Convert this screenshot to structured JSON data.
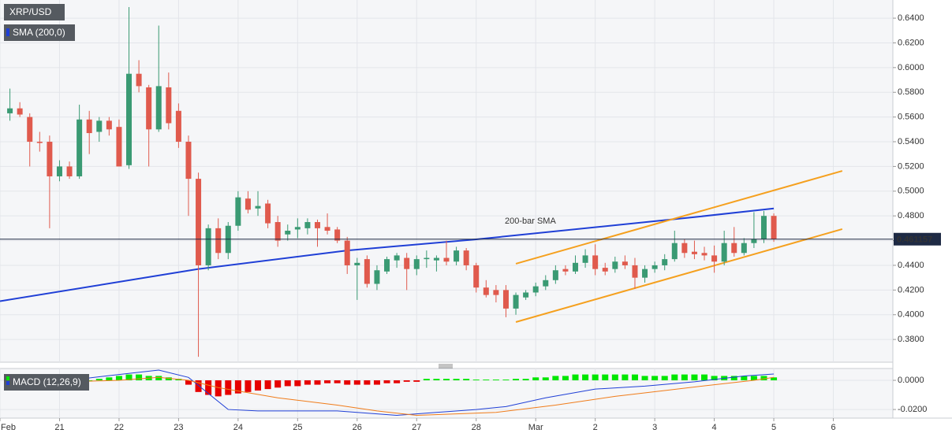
{
  "chart_data": [
    {
      "type": "candlestick",
      "title": "XRP/USD",
      "x": [
        1,
        2,
        3,
        4,
        5,
        6,
        7,
        8,
        9,
        10,
        11,
        12,
        13,
        14,
        15,
        16,
        17,
        18,
        19,
        20,
        21,
        22,
        23,
        24,
        25,
        26,
        27,
        28,
        29,
        30,
        31,
        32,
        33,
        34,
        35,
        36,
        37,
        38,
        39,
        40,
        41,
        42,
        43,
        44,
        45,
        46,
        47,
        48,
        49,
        50,
        51,
        52,
        53,
        54,
        55,
        56,
        57,
        58,
        59,
        60,
        61,
        62,
        63,
        64,
        65,
        66,
        67,
        68,
        69,
        70,
        71,
        72,
        73,
        74,
        75,
        76,
        77,
        78
      ],
      "open": [
        0.563,
        0.567,
        0.56,
        0.54,
        0.54,
        0.512,
        0.52,
        0.512,
        0.558,
        0.548,
        0.557,
        0.552,
        0.521,
        0.595,
        0.584,
        0.55,
        0.584,
        0.565,
        0.54,
        0.51,
        0.44,
        0.47,
        0.45,
        0.472,
        0.494,
        0.486,
        0.49,
        0.475,
        0.465,
        0.469,
        0.47,
        0.475,
        0.471,
        0.469,
        0.46,
        0.44,
        0.445,
        0.425,
        0.435,
        0.444,
        0.446,
        0.437,
        0.445,
        0.444,
        0.446,
        0.443,
        0.452,
        0.44,
        0.422,
        0.42,
        0.42,
        0.405,
        0.414,
        0.418,
        0.423,
        0.428,
        0.437,
        0.435,
        0.442,
        0.448,
        0.438,
        0.437,
        0.443,
        0.44,
        0.43,
        0.437,
        0.44,
        0.445,
        0.458,
        0.451,
        0.45,
        0.448,
        0.443,
        0.458,
        0.45,
        0.458,
        0.461,
        0.48
      ],
      "high": [
        0.583,
        0.572,
        0.563,
        0.548,
        0.545,
        0.525,
        0.524,
        0.57,
        0.565,
        0.56,
        0.56,
        0.558,
        0.649,
        0.606,
        0.586,
        0.634,
        0.596,
        0.571,
        0.545,
        0.515,
        0.473,
        0.478,
        0.475,
        0.5,
        0.5,
        0.5,
        0.493,
        0.48,
        0.473,
        0.478,
        0.478,
        0.477,
        0.482,
        0.471,
        0.463,
        0.446,
        0.448,
        0.44,
        0.447,
        0.45,
        0.45,
        0.448,
        0.452,
        0.448,
        0.46,
        0.455,
        0.454,
        0.442,
        0.428,
        0.424,
        0.424,
        0.418,
        0.42,
        0.426,
        0.432,
        0.44,
        0.44,
        0.448,
        0.453,
        0.457,
        0.442,
        0.447,
        0.448,
        0.446,
        0.44,
        0.443,
        0.449,
        0.468,
        0.461,
        0.46,
        0.455,
        0.456,
        0.468,
        0.471,
        0.462,
        0.483,
        0.484,
        0.482
      ],
      "low": [
        0.557,
        0.56,
        0.52,
        0.532,
        0.47,
        0.508,
        0.51,
        0.51,
        0.53,
        0.54,
        0.545,
        0.52,
        0.518,
        0.58,
        0.52,
        0.548,
        0.55,
        0.535,
        0.48,
        0.366,
        0.436,
        0.445,
        0.445,
        0.468,
        0.482,
        0.48,
        0.47,
        0.455,
        0.46,
        0.462,
        0.465,
        0.455,
        0.465,
        0.458,
        0.433,
        0.412,
        0.422,
        0.42,
        0.433,
        0.438,
        0.42,
        0.432,
        0.438,
        0.435,
        0.44,
        0.44,
        0.436,
        0.418,
        0.414,
        0.41,
        0.398,
        0.4,
        0.412,
        0.415,
        0.42,
        0.425,
        0.432,
        0.433,
        0.438,
        0.432,
        0.432,
        0.434,
        0.437,
        0.421,
        0.426,
        0.434,
        0.436,
        0.443,
        0.446,
        0.445,
        0.444,
        0.434,
        0.44,
        0.447,
        0.448,
        0.454,
        0.458,
        0.459
      ],
      "close": [
        0.567,
        0.562,
        0.54,
        0.539,
        0.512,
        0.52,
        0.512,
        0.558,
        0.547,
        0.557,
        0.55,
        0.52,
        0.595,
        0.585,
        0.55,
        0.585,
        0.555,
        0.54,
        0.51,
        0.44,
        0.47,
        0.45,
        0.472,
        0.495,
        0.485,
        0.488,
        0.474,
        0.46,
        0.468,
        0.471,
        0.475,
        0.47,
        0.468,
        0.46,
        0.44,
        0.442,
        0.425,
        0.436,
        0.445,
        0.448,
        0.437,
        0.445,
        0.446,
        0.446,
        0.443,
        0.452,
        0.44,
        0.422,
        0.416,
        0.416,
        0.405,
        0.416,
        0.418,
        0.423,
        0.428,
        0.436,
        0.435,
        0.442,
        0.448,
        0.437,
        0.435,
        0.443,
        0.44,
        0.43,
        0.437,
        0.44,
        0.445,
        0.458,
        0.45,
        0.449,
        0.448,
        0.443,
        0.458,
        0.45,
        0.458,
        0.461,
        0.48,
        0.461157
      ],
      "up_color": "#3a9a73",
      "down_color": "#e05a4d",
      "xlim": [
        0,
        90
      ],
      "xticks": [
        {
          "value": 0,
          "label": "Feb"
        },
        {
          "value": 6,
          "label": "21"
        },
        {
          "value": 12,
          "label": "22"
        },
        {
          "value": 18,
          "label": "23"
        },
        {
          "value": 24,
          "label": "24"
        },
        {
          "value": 30,
          "label": "25"
        },
        {
          "value": 36,
          "label": "26"
        },
        {
          "value": 42,
          "label": "27"
        },
        {
          "value": 48,
          "label": "28"
        },
        {
          "value": 54,
          "label": "Mar"
        },
        {
          "value": 60,
          "label": "2"
        },
        {
          "value": 66,
          "label": "3"
        },
        {
          "value": 72,
          "label": "4"
        },
        {
          "value": 78,
          "label": "5"
        },
        {
          "value": 84,
          "label": "6"
        }
      ],
      "ylim": [
        0.3616,
        0.6547
      ],
      "yticks": [
        {
          "value": 0.64,
          "label": "0.6400"
        },
        {
          "value": 0.62,
          "label": "0.6200"
        },
        {
          "value": 0.6,
          "label": "0.6000"
        },
        {
          "value": 0.58,
          "label": "0.5800"
        },
        {
          "value": 0.56,
          "label": "0.5600"
        },
        {
          "value": 0.54,
          "label": "0.5400"
        },
        {
          "value": 0.52,
          "label": "0.5200"
        },
        {
          "value": 0.5,
          "label": "0.5000"
        },
        {
          "value": 0.48,
          "label": "0.4800"
        },
        {
          "value": 0.46,
          "label": "0.4600"
        },
        {
          "value": 0.44,
          "label": "0.4400"
        },
        {
          "value": 0.42,
          "label": "0.4200"
        },
        {
          "value": 0.4,
          "label": "0.4000"
        },
        {
          "value": 0.38,
          "label": "0.3800"
        }
      ],
      "grid": true,
      "last_price": 0.461157,
      "sma": {
        "name": "SMA (200,0)",
        "annotation": "200-bar SMA",
        "color": "#1f3fd6",
        "x": [
          0,
          20,
          35,
          48,
          70,
          78
        ],
        "values": [
          0.411,
          0.437,
          0.452,
          0.461,
          0.479,
          0.486
        ]
      },
      "channel": {
        "color": "#f5a01e",
        "upper": {
          "x": [
            52,
            84.9
          ],
          "values": [
            0.4413,
            0.5164
          ]
        },
        "lower": {
          "x": [
            52,
            84.9
          ],
          "values": [
            0.3941,
            0.4693
          ]
        }
      }
    },
    {
      "type": "macd",
      "title": "MACD (12,26,9)",
      "ylim": [
        -0.0259,
        0.0081
      ],
      "yticks": [
        {
          "value": 0,
          "label": "0.0000"
        },
        {
          "value": -0.02,
          "label": "-0.0200"
        }
      ],
      "histogram": {
        "up_color": "#00e600",
        "down_color": "#e60000",
        "x": [
          1,
          2,
          3,
          4,
          5,
          6,
          7,
          8,
          9,
          10,
          11,
          12,
          13,
          14,
          15,
          16,
          17,
          18,
          19,
          20,
          21,
          22,
          23,
          24,
          25,
          26,
          27,
          28,
          29,
          30,
          31,
          32,
          33,
          34,
          35,
          36,
          37,
          38,
          39,
          40,
          41,
          42,
          43,
          44,
          45,
          46,
          47,
          48,
          49,
          50,
          51,
          52,
          53,
          54,
          55,
          56,
          57,
          58,
          59,
          60,
          61,
          62,
          63,
          64,
          65,
          66,
          67,
          68,
          69,
          70,
          71,
          72,
          73,
          74,
          75,
          76,
          77,
          78
        ],
        "values": [
          -0.001,
          -0.001,
          -0.0015,
          -0.001,
          -0.0005,
          -0.0005,
          0,
          -0.0005,
          0,
          0.001,
          0.002,
          0.003,
          0.004,
          0.004,
          0.003,
          0.003,
          0.002,
          0.001,
          -0.003,
          -0.008,
          -0.01,
          -0.011,
          -0.01,
          -0.009,
          -0.008,
          -0.007,
          -0.006,
          -0.005,
          -0.004,
          -0.004,
          -0.003,
          -0.003,
          -0.002,
          -0.002,
          -0.003,
          -0.003,
          -0.003,
          -0.003,
          -0.002,
          -0.002,
          -0.001,
          -0.001,
          0.001,
          0.001,
          0.001,
          0.001,
          0.001,
          0.0005,
          0.0005,
          0.0005,
          0.0005,
          0.001,
          0.001,
          0.002,
          0.002,
          0.003,
          0.003,
          0.004,
          0.004,
          0.004,
          0.004,
          0.004,
          0.004,
          0.004,
          0.003,
          0.003,
          0.003,
          0.004,
          0.004,
          0.004,
          0.004,
          0.003,
          0.003,
          0.003,
          0.003,
          0.003,
          0.003,
          0.002
        ]
      },
      "series": [
        {
          "name": "MACD",
          "color": "#1f3fd6",
          "x": [
            1,
            7,
            12,
            16,
            19,
            23,
            26,
            30,
            34,
            40,
            44,
            48,
            51,
            55,
            60,
            65,
            70,
            75,
            78
          ],
          "values": [
            -0.003,
            0,
            0.004,
            0.007,
            0.002,
            -0.02,
            -0.021,
            -0.021,
            -0.021,
            -0.024,
            -0.022,
            -0.02,
            -0.018,
            -0.012,
            -0.006,
            -0.004,
            -0.001,
            0.003,
            0.0043
          ]
        },
        {
          "name": "Signal",
          "color": "#f07c1a",
          "x": [
            1,
            7,
            12,
            16,
            19,
            22,
            28,
            34,
            38,
            42,
            50,
            56,
            62,
            67,
            72,
            76,
            78
          ],
          "values": [
            -0.002,
            -0.001,
            0,
            0.002,
            0,
            -0.005,
            -0.012,
            -0.017,
            -0.021,
            -0.024,
            -0.022,
            -0.017,
            -0.011,
            -0.007,
            -0.003,
            0,
            0.002
          ]
        }
      ]
    }
  ]
}
